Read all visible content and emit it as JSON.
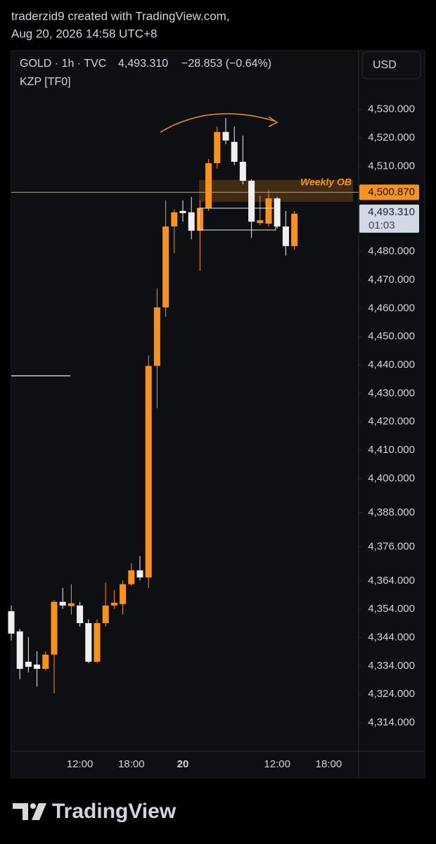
{
  "header": {
    "attribution": "traderzid9 created with TradingView.com,",
    "timestamp": "Aug 20, 2026 14:58 UTC+8"
  },
  "chart_data": {
    "type": "candlestick",
    "symbol": "GOLD · 1h · TVC",
    "last_price_label": "4,493.310",
    "change": "−28.853 (−0.64%)",
    "indicator": "KZP [TF0]",
    "currency": "USD",
    "countdown": "01:03",
    "categories": [
      null,
      null,
      null,
      null,
      null,
      null,
      null,
      null,
      "12:00",
      null,
      null,
      null,
      null,
      null,
      "18:00",
      null,
      null,
      null,
      null,
      null,
      "20",
      null,
      null,
      null,
      null,
      null,
      null,
      null,
      null,
      null,
      null,
      "12:00",
      null,
      null,
      null,
      null,
      null,
      "18:00"
    ],
    "open": [
      4353.3,
      4346.2,
      4335.5,
      4334.5,
      4333.0,
      4338.0,
      4356.6,
      4355.1,
      4355.3,
      4349.1,
      4335.5,
      4349.1,
      4355.3,
      4355.8,
      4362.8,
      4367.7,
      4365.2,
      4439.7,
      4460.3,
      4488.8,
      4494.3,
      4493.8,
      4487.3,
      4495.3,
      4511.1,
      4522.1,
      4518.6,
      4511.6,
      4504.9,
      4490.0,
      4489.8,
      4498.7,
      4488.8,
      4481.9,
      null,
      null,
      null,
      null
    ],
    "high": [
      4355.3,
      4347.1,
      4344.2,
      4339.2,
      4339.2,
      4357.3,
      4361.5,
      4362.8,
      4356.6,
      4350.4,
      4350.4,
      4363.3,
      4360.8,
      4364.1,
      4370.2,
      4372.7,
      4443.4,
      4467.0,
      4498.0,
      4494.8,
      4498.0,
      4499.2,
      4498.0,
      4512.6,
      4524.0,
      4527.0,
      4524.0,
      4520.8,
      4505.4,
      4499.7,
      4501.7,
      4499.2,
      4494.3,
      4494.3,
      null,
      null,
      null,
      null
    ],
    "low": [
      4342.9,
      4329.3,
      4331.8,
      4326.8,
      4332.5,
      4324.3,
      4354.1,
      4352.1,
      4347.9,
      4335.0,
      4335.0,
      4347.9,
      4354.1,
      4352.1,
      4362.3,
      4364.1,
      4361.5,
      4424.8,
      4457.0,
      4479.4,
      4490.5,
      4484.3,
      4473.2,
      4494.3,
      4509.2,
      4517.8,
      4510.4,
      4503.7,
      4484.8,
      4489.3,
      4488.8,
      4488.1,
      4478.6,
      4480.6,
      null,
      null,
      null,
      null
    ],
    "close": [
      4345.4,
      4333.0,
      4333.7,
      4333.0,
      4338.0,
      4356.6,
      4355.3,
      4356.1,
      4349.1,
      4335.5,
      4349.1,
      4355.3,
      4356.3,
      4362.8,
      4367.7,
      4365.2,
      4439.7,
      4460.3,
      4488.8,
      4493.8,
      4493.5,
      4487.3,
      4495.3,
      4511.1,
      4522.1,
      4519.1,
      4511.6,
      4504.9,
      4490.5,
      4491.0,
      4498.7,
      4488.8,
      4481.9,
      4493.31,
      null,
      null,
      null,
      null
    ],
    "up_color": "#f7931a",
    "down_color": "#f0f0f0",
    "ylim": [
      4304,
      4550
    ],
    "yticks": [
      {
        "value": 4530,
        "label": "4,530.000"
      },
      {
        "value": 4520,
        "label": "4,520.000"
      },
      {
        "value": 4510,
        "label": "4,510.000"
      },
      {
        "value": 4480,
        "label": "4,480.000"
      },
      {
        "value": 4470,
        "label": "4,470.000"
      },
      {
        "value": 4460,
        "label": "4,460.000"
      },
      {
        "value": 4450,
        "label": "4,450.000"
      },
      {
        "value": 4440,
        "label": "4,440.000"
      },
      {
        "value": 4430,
        "label": "4,430.000"
      },
      {
        "value": 4420,
        "label": "4,420.000"
      },
      {
        "value": 4410,
        "label": "4,410.000"
      },
      {
        "value": 4400,
        "label": "4,400.000"
      },
      {
        "value": 4388,
        "label": "4,388.000"
      },
      {
        "value": 4376,
        "label": "4,376.000"
      },
      {
        "value": 4364,
        "label": "4,364.000"
      },
      {
        "value": 4354,
        "label": "4,354.000"
      },
      {
        "value": 4344,
        "label": "4,344.000"
      },
      {
        "value": 4334,
        "label": "4,334.000"
      },
      {
        "value": 4324,
        "label": "4,324.000"
      },
      {
        "value": 4314,
        "label": "4,314.000"
      }
    ],
    "price_line": {
      "value": 4500.87,
      "label": "4,500.870"
    },
    "zone": {
      "label": "Weekly OB",
      "from": 4497.5,
      "to": 4505.2
    },
    "hline": 4436.2
  },
  "footer": {
    "logo": "TradingView"
  }
}
